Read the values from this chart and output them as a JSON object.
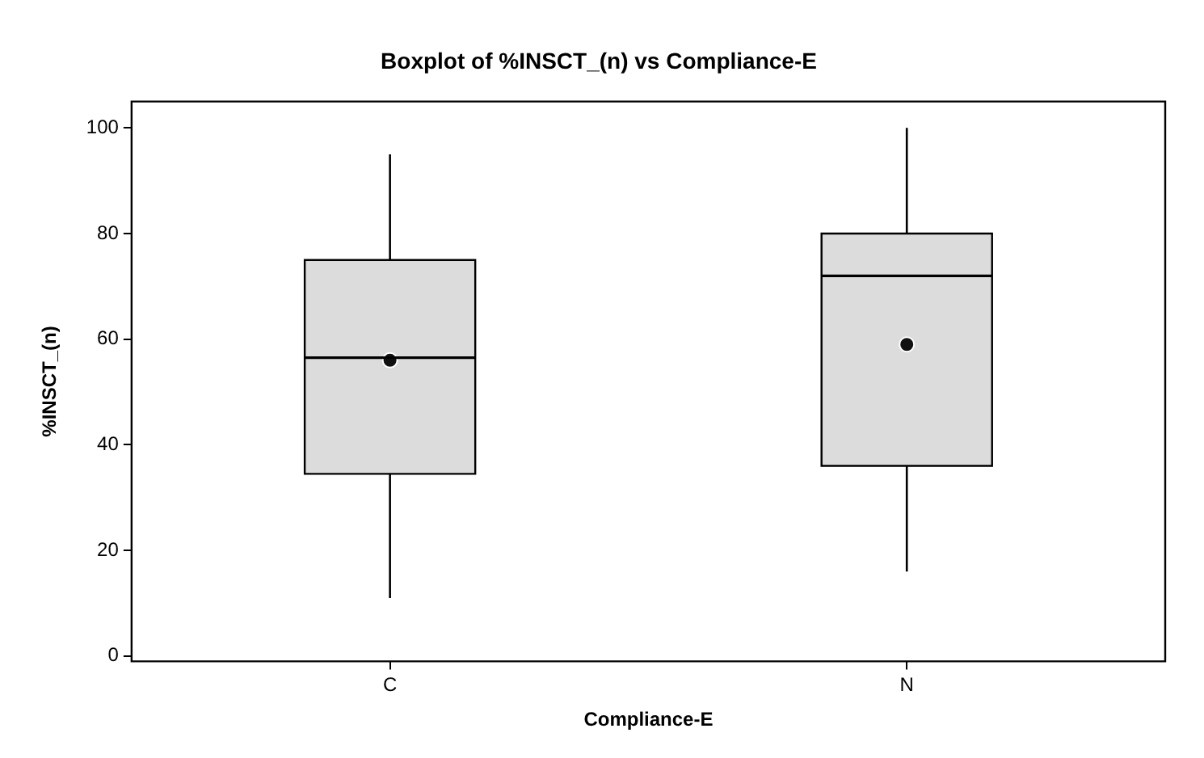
{
  "chart_data": {
    "type": "box",
    "title": "Boxplot of %INSCT_(n) vs Compliance-E",
    "xlabel": "Compliance-E",
    "ylabel": "%INSCT_(n)",
    "categories": [
      "C",
      "N"
    ],
    "series": [
      {
        "color": "#dcdcdc",
        "boxes": [
          {
            "low": 11,
            "q1": 34.5,
            "median": 56.5,
            "q3": 75,
            "high": 95,
            "mean": 56
          },
          {
            "low": 16,
            "q1": 36,
            "median": 72,
            "q3": 80,
            "high": 100,
            "mean": 59
          }
        ]
      }
    ],
    "ylim": [
      -1,
      105
    ],
    "yticks": [
      0,
      20,
      40,
      60,
      80,
      100
    ],
    "grid": false,
    "legend": false,
    "marker": "circle"
  }
}
